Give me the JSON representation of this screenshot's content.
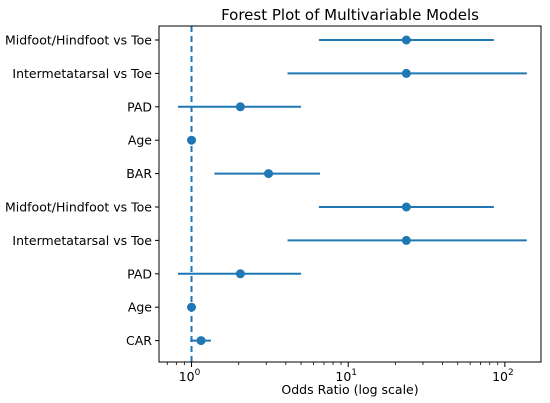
{
  "chart_data": {
    "type": "forest",
    "title": "Forest Plot of Multivariable Models",
    "xlabel": "Odds Ratio (log scale)",
    "xscale": "log",
    "xlim": [
      0.62,
      170
    ],
    "xticks": [
      {
        "value": 1,
        "base": "10",
        "exp": "0"
      },
      {
        "value": 10,
        "base": "10",
        "exp": "1"
      },
      {
        "value": 100,
        "base": "10",
        "exp": "2"
      }
    ],
    "reference_line": {
      "x": 1,
      "style": "dashed"
    },
    "color": "#1f77b4",
    "rows": [
      {
        "label": "Midfoot/Hindfoot vs Toe",
        "or": 23.5,
        "ci_low": 6.5,
        "ci_high": 85
      },
      {
        "label": "Intermetatarsal vs Toe",
        "or": 23.5,
        "ci_low": 4.1,
        "ci_high": 138
      },
      {
        "label": "PAD",
        "or": 2.05,
        "ci_low": 0.82,
        "ci_high": 5.0
      },
      {
        "label": "Age",
        "or": 1.0,
        "ci_low": 0.99,
        "ci_high": 1.02
      },
      {
        "label": "BAR",
        "or": 3.1,
        "ci_low": 1.4,
        "ci_high": 6.6
      },
      {
        "label": "Midfoot/Hindfoot vs Toe",
        "or": 23.5,
        "ci_low": 6.5,
        "ci_high": 85
      },
      {
        "label": "Intermetatarsal vs Toe",
        "or": 23.5,
        "ci_low": 4.1,
        "ci_high": 138
      },
      {
        "label": "PAD",
        "or": 2.05,
        "ci_low": 0.82,
        "ci_high": 5.0
      },
      {
        "label": "Age",
        "or": 1.0,
        "ci_low": 0.99,
        "ci_high": 1.02
      },
      {
        "label": "CAR",
        "or": 1.15,
        "ci_low": 0.98,
        "ci_high": 1.33
      }
    ]
  }
}
